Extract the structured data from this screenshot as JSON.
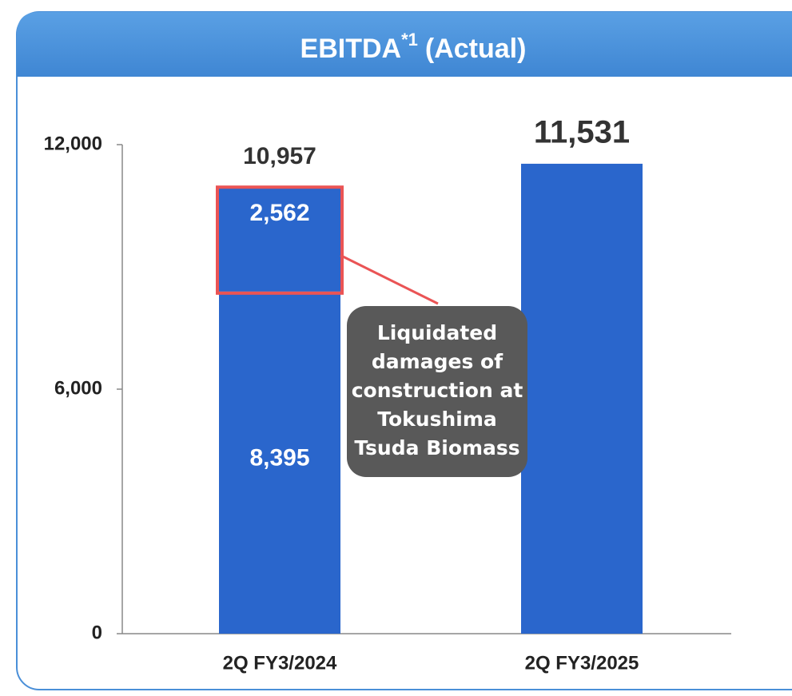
{
  "chart_data": {
    "type": "stacked_bar",
    "title": "EBITDA",
    "title_superscript": "*1",
    "title_suffix": "(Actual)",
    "categories": [
      "2Q FY3/2024",
      "2Q FY3/2025"
    ],
    "series": [
      {
        "color": "#2a66cc",
        "values": [
          8395,
          11531
        ],
        "value_labels": [
          "8,395",
          null
        ]
      },
      {
        "color": "#2a66cc",
        "values": [
          2562,
          null
        ],
        "value_labels": [
          "2,562",
          null
        ]
      }
    ],
    "totals": [
      10957,
      11531
    ],
    "total_labels": [
      "10,957",
      "11,531"
    ],
    "highlight_color": "#ea5455",
    "annotation": [
      "Liquidated",
      "damages of",
      "construction at",
      "Tokushima",
      "Tsuda Biomass"
    ],
    "ylim": [
      0,
      12000
    ],
    "yticks": [
      0,
      {
        "value": 6000,
        "label": "6,000"
      },
      {
        "value": 12000,
        "label": "12,000"
      }
    ]
  }
}
